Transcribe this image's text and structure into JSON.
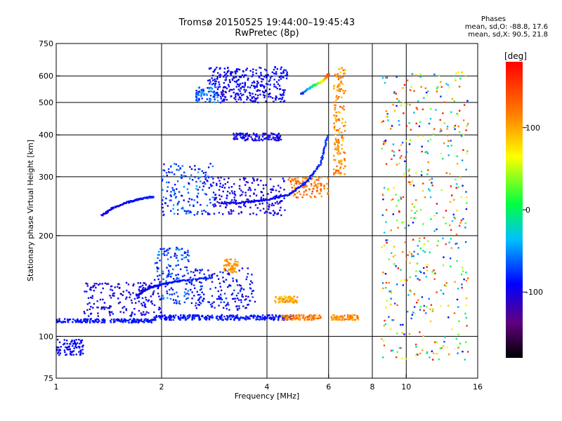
{
  "chart_data": {
    "type": "scatter",
    "title": "Tromsø 20150525 19:44:00–19:45:43",
    "subtitle": "RwPretec (8p)",
    "xlabel": "Frequency [MHz]",
    "ylabel": "Stationary phase Virtual Height [km]",
    "x_scale": "log",
    "y_scale": "log",
    "xlim": [
      1,
      16
    ],
    "ylim": [
      75,
      750
    ],
    "x_ticks": [
      1,
      2,
      4,
      6,
      8,
      10,
      16
    ],
    "x_tick_labels": [
      "1",
      "2",
      "4",
      "6",
      "8",
      "10",
      "16"
    ],
    "x_grid": [
      2,
      4,
      6,
      8,
      10
    ],
    "y_ticks": [
      75,
      100,
      200,
      300,
      400,
      500,
      600,
      750
    ],
    "y_tick_labels": [
      "75",
      "100",
      "200",
      "300",
      "400",
      "500",
      "600",
      "750"
    ],
    "y_grid": [
      100,
      200,
      300,
      400,
      500,
      600
    ],
    "grid": true,
    "colorbar": {
      "label": "[deg]",
      "range": [
        -180,
        180
      ],
      "ticks": [
        100,
        0,
        -100
      ],
      "tick_labels": [
        "100",
        "0",
        "-100"
      ]
    },
    "stats": {
      "heading": "Phases",
      "line_o": "mean, sd,O:  -88.8, 17.6",
      "line_x": "mean, sd,X:  90.5, 21.8"
    },
    "clusters": [
      {
        "x": [
          1.0,
          1.9
        ],
        "y": [
          110,
          113
        ],
        "phase": [
          -95,
          -75
        ]
      },
      {
        "x": [
          1.9,
          4.8
        ],
        "y": [
          112,
          116
        ],
        "phase": [
          -95,
          -75
        ]
      },
      {
        "x": [
          4.4,
          5.7
        ],
        "y": [
          112,
          116
        ],
        "phase": [
          90,
          150
        ]
      },
      {
        "x": [
          1.0,
          1.2
        ],
        "y": [
          88,
          98
        ],
        "phase": [
          -100,
          -80
        ]
      },
      {
        "x": [
          1.2,
          2.0
        ],
        "y": [
          115,
          145
        ],
        "phase": [
          -120,
          -80
        ]
      },
      {
        "x": [
          1.9,
          2.4
        ],
        "y": [
          125,
          185
        ],
        "phase": [
          -100,
          -40
        ]
      },
      {
        "x": [
          2.4,
          3.7
        ],
        "y": [
          120,
          160
        ],
        "phase": [
          -110,
          -70
        ]
      },
      {
        "x": [
          3.0,
          3.3
        ],
        "y": [
          155,
          170
        ],
        "phase": [
          90,
          120
        ]
      },
      {
        "x": [
          4.2,
          4.9
        ],
        "y": [
          126,
          132
        ],
        "phase": [
          80,
          120
        ]
      },
      {
        "x": [
          6.1,
          7.3
        ],
        "y": [
          112,
          116
        ],
        "phase": [
          90,
          130
        ]
      },
      {
        "x": [
          2.0,
          2.8
        ],
        "y": [
          230,
          330
        ],
        "phase": [
          -110,
          -40
        ]
      },
      {
        "x": [
          2.8,
          4.5
        ],
        "y": [
          230,
          300
        ],
        "phase": [
          -120,
          -80
        ]
      },
      {
        "x": [
          2.5,
          2.9
        ],
        "y": [
          500,
          560
        ],
        "phase": [
          -90,
          -40
        ]
      },
      {
        "x": [
          2.9,
          4.5
        ],
        "y": [
          500,
          560
        ],
        "phase": [
          -110,
          -80
        ]
      },
      {
        "x": [
          3.2,
          4.4
        ],
        "y": [
          385,
          405
        ],
        "phase": [
          -110,
          -80
        ]
      },
      {
        "x": [
          2.7,
          4.6
        ],
        "y": [
          560,
          640
        ],
        "phase": [
          -100,
          -80
        ]
      },
      {
        "x": [
          6.2,
          6.7
        ],
        "y": [
          300,
          640
        ],
        "phase": [
          80,
          140
        ]
      },
      {
        "x": [
          4.6,
          6.0
        ],
        "y": [
          260,
          300
        ],
        "phase": [
          90,
          150
        ]
      },
      {
        "x": [
          8.5,
          15.0
        ],
        "y": [
          85,
          620
        ],
        "phase": [
          -100,
          180
        ]
      }
    ],
    "traces": [
      {
        "x": [
          1.35,
          1.45,
          1.6,
          1.75,
          1.9
        ],
        "y": [
          230,
          242,
          252,
          258,
          262
        ],
        "phase": [
          -100,
          -80
        ]
      },
      {
        "x": [
          3.0,
          3.5,
          4.0,
          4.6,
          5.2,
          5.7,
          5.95
        ],
        "y": [
          250,
          252,
          256,
          265,
          290,
          330,
          400
        ],
        "phase": [
          -100,
          -75
        ]
      },
      {
        "x": [
          1.7,
          1.85,
          2.0,
          2.3,
          2.8
        ],
        "y": [
          133,
          140,
          143,
          147,
          150
        ],
        "phase": [
          -100,
          -80
        ]
      },
      {
        "x": [
          5.0,
          5.4,
          5.8,
          6.0
        ],
        "y": [
          530,
          560,
          580,
          610
        ],
        "phase": [
          -90,
          150
        ]
      }
    ]
  }
}
